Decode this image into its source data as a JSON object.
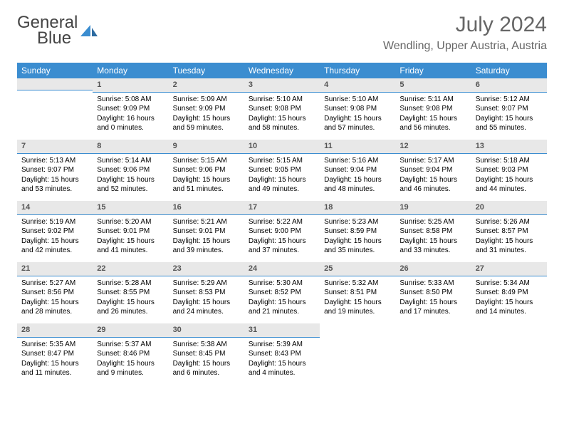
{
  "logo": {
    "line1_a": "General",
    "line1_b": "",
    "line2": "Blue"
  },
  "title": "July 2024",
  "location": "Wendling, Upper Austria, Austria",
  "colors": {
    "accent": "#3b8dd0",
    "header_text": "#ffffff",
    "daynum_bg": "#e8e8e8",
    "daynum_text": "#555555",
    "body_text": "#000000",
    "title_text": "#666666"
  },
  "weekdays": [
    "Sunday",
    "Monday",
    "Tuesday",
    "Wednesday",
    "Thursday",
    "Friday",
    "Saturday"
  ],
  "weeks": [
    [
      null,
      {
        "n": "1",
        "sunrise": "Sunrise: 5:08 AM",
        "sunset": "Sunset: 9:09 PM",
        "daylight": "Daylight: 16 hours and 0 minutes."
      },
      {
        "n": "2",
        "sunrise": "Sunrise: 5:09 AM",
        "sunset": "Sunset: 9:09 PM",
        "daylight": "Daylight: 15 hours and 59 minutes."
      },
      {
        "n": "3",
        "sunrise": "Sunrise: 5:10 AM",
        "sunset": "Sunset: 9:08 PM",
        "daylight": "Daylight: 15 hours and 58 minutes."
      },
      {
        "n": "4",
        "sunrise": "Sunrise: 5:10 AM",
        "sunset": "Sunset: 9:08 PM",
        "daylight": "Daylight: 15 hours and 57 minutes."
      },
      {
        "n": "5",
        "sunrise": "Sunrise: 5:11 AM",
        "sunset": "Sunset: 9:08 PM",
        "daylight": "Daylight: 15 hours and 56 minutes."
      },
      {
        "n": "6",
        "sunrise": "Sunrise: 5:12 AM",
        "sunset": "Sunset: 9:07 PM",
        "daylight": "Daylight: 15 hours and 55 minutes."
      }
    ],
    [
      {
        "n": "7",
        "sunrise": "Sunrise: 5:13 AM",
        "sunset": "Sunset: 9:07 PM",
        "daylight": "Daylight: 15 hours and 53 minutes."
      },
      {
        "n": "8",
        "sunrise": "Sunrise: 5:14 AM",
        "sunset": "Sunset: 9:06 PM",
        "daylight": "Daylight: 15 hours and 52 minutes."
      },
      {
        "n": "9",
        "sunrise": "Sunrise: 5:15 AM",
        "sunset": "Sunset: 9:06 PM",
        "daylight": "Daylight: 15 hours and 51 minutes."
      },
      {
        "n": "10",
        "sunrise": "Sunrise: 5:15 AM",
        "sunset": "Sunset: 9:05 PM",
        "daylight": "Daylight: 15 hours and 49 minutes."
      },
      {
        "n": "11",
        "sunrise": "Sunrise: 5:16 AM",
        "sunset": "Sunset: 9:04 PM",
        "daylight": "Daylight: 15 hours and 48 minutes."
      },
      {
        "n": "12",
        "sunrise": "Sunrise: 5:17 AM",
        "sunset": "Sunset: 9:04 PM",
        "daylight": "Daylight: 15 hours and 46 minutes."
      },
      {
        "n": "13",
        "sunrise": "Sunrise: 5:18 AM",
        "sunset": "Sunset: 9:03 PM",
        "daylight": "Daylight: 15 hours and 44 minutes."
      }
    ],
    [
      {
        "n": "14",
        "sunrise": "Sunrise: 5:19 AM",
        "sunset": "Sunset: 9:02 PM",
        "daylight": "Daylight: 15 hours and 42 minutes."
      },
      {
        "n": "15",
        "sunrise": "Sunrise: 5:20 AM",
        "sunset": "Sunset: 9:01 PM",
        "daylight": "Daylight: 15 hours and 41 minutes."
      },
      {
        "n": "16",
        "sunrise": "Sunrise: 5:21 AM",
        "sunset": "Sunset: 9:01 PM",
        "daylight": "Daylight: 15 hours and 39 minutes."
      },
      {
        "n": "17",
        "sunrise": "Sunrise: 5:22 AM",
        "sunset": "Sunset: 9:00 PM",
        "daylight": "Daylight: 15 hours and 37 minutes."
      },
      {
        "n": "18",
        "sunrise": "Sunrise: 5:23 AM",
        "sunset": "Sunset: 8:59 PM",
        "daylight": "Daylight: 15 hours and 35 minutes."
      },
      {
        "n": "19",
        "sunrise": "Sunrise: 5:25 AM",
        "sunset": "Sunset: 8:58 PM",
        "daylight": "Daylight: 15 hours and 33 minutes."
      },
      {
        "n": "20",
        "sunrise": "Sunrise: 5:26 AM",
        "sunset": "Sunset: 8:57 PM",
        "daylight": "Daylight: 15 hours and 31 minutes."
      }
    ],
    [
      {
        "n": "21",
        "sunrise": "Sunrise: 5:27 AM",
        "sunset": "Sunset: 8:56 PM",
        "daylight": "Daylight: 15 hours and 28 minutes."
      },
      {
        "n": "22",
        "sunrise": "Sunrise: 5:28 AM",
        "sunset": "Sunset: 8:55 PM",
        "daylight": "Daylight: 15 hours and 26 minutes."
      },
      {
        "n": "23",
        "sunrise": "Sunrise: 5:29 AM",
        "sunset": "Sunset: 8:53 PM",
        "daylight": "Daylight: 15 hours and 24 minutes."
      },
      {
        "n": "24",
        "sunrise": "Sunrise: 5:30 AM",
        "sunset": "Sunset: 8:52 PM",
        "daylight": "Daylight: 15 hours and 21 minutes."
      },
      {
        "n": "25",
        "sunrise": "Sunrise: 5:32 AM",
        "sunset": "Sunset: 8:51 PM",
        "daylight": "Daylight: 15 hours and 19 minutes."
      },
      {
        "n": "26",
        "sunrise": "Sunrise: 5:33 AM",
        "sunset": "Sunset: 8:50 PM",
        "daylight": "Daylight: 15 hours and 17 minutes."
      },
      {
        "n": "27",
        "sunrise": "Sunrise: 5:34 AM",
        "sunset": "Sunset: 8:49 PM",
        "daylight": "Daylight: 15 hours and 14 minutes."
      }
    ],
    [
      {
        "n": "28",
        "sunrise": "Sunrise: 5:35 AM",
        "sunset": "Sunset: 8:47 PM",
        "daylight": "Daylight: 15 hours and 11 minutes."
      },
      {
        "n": "29",
        "sunrise": "Sunrise: 5:37 AM",
        "sunset": "Sunset: 8:46 PM",
        "daylight": "Daylight: 15 hours and 9 minutes."
      },
      {
        "n": "30",
        "sunrise": "Sunrise: 5:38 AM",
        "sunset": "Sunset: 8:45 PM",
        "daylight": "Daylight: 15 hours and 6 minutes."
      },
      {
        "n": "31",
        "sunrise": "Sunrise: 5:39 AM",
        "sunset": "Sunset: 8:43 PM",
        "daylight": "Daylight: 15 hours and 4 minutes."
      },
      null,
      null,
      null
    ]
  ]
}
